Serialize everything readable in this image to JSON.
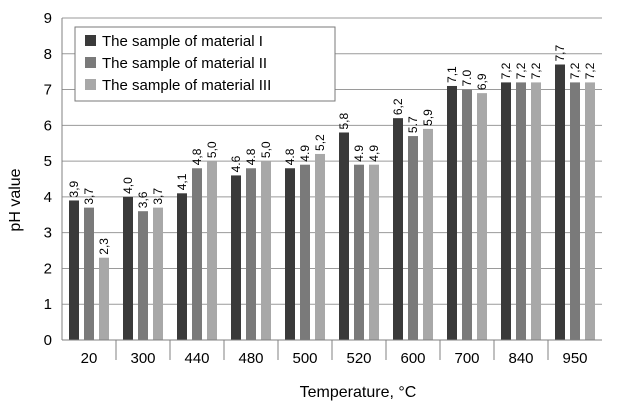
{
  "chart_data": {
    "type": "bar",
    "title": "",
    "xlabel": "Temperature, ",
    "xlabel_unit": "°C",
    "ylabel": "pH value",
    "ylim": [
      0,
      9
    ],
    "yticks": [
      0,
      1,
      2,
      3,
      4,
      5,
      6,
      7,
      8,
      9
    ],
    "grid": true,
    "legend_position": "top-left",
    "categories": [
      "20",
      "300",
      "440",
      "480",
      "500",
      "520",
      "600",
      "700",
      "840",
      "950"
    ],
    "series": [
      {
        "name": "The sample of material I",
        "color": "#3a3a3a",
        "values": [
          3.9,
          4.0,
          4.1,
          4.6,
          4.8,
          5.8,
          6.2,
          7.1,
          7.2,
          7.7
        ],
        "labels": [
          "3,9",
          "4,0",
          "4,1",
          "4.6",
          "4.8",
          "5,8",
          "6,2",
          "7,1",
          "7,2",
          "7,7"
        ]
      },
      {
        "name": "The sample of material II",
        "color": "#7a7a7a",
        "values": [
          3.7,
          3.6,
          4.8,
          4.8,
          4.9,
          4.9,
          5.7,
          7.0,
          7.2,
          7.2
        ],
        "labels": [
          "3,7",
          "3,6",
          "4,8",
          "4.8",
          "4.9",
          "4.9",
          "5.7",
          "7.0",
          "7,2",
          "7,2"
        ]
      },
      {
        "name": "The sample of material III",
        "color": "#a8a8a8",
        "values": [
          2.3,
          3.7,
          5.0,
          5.0,
          5.2,
          4.9,
          5.9,
          6.9,
          7.2,
          7.2
        ],
        "labels": [
          "2,3",
          "3,7",
          "5,0",
          "5,0",
          "5,2",
          "4,9",
          "5,9",
          "6,9",
          "7,2",
          "7,2"
        ]
      }
    ]
  }
}
